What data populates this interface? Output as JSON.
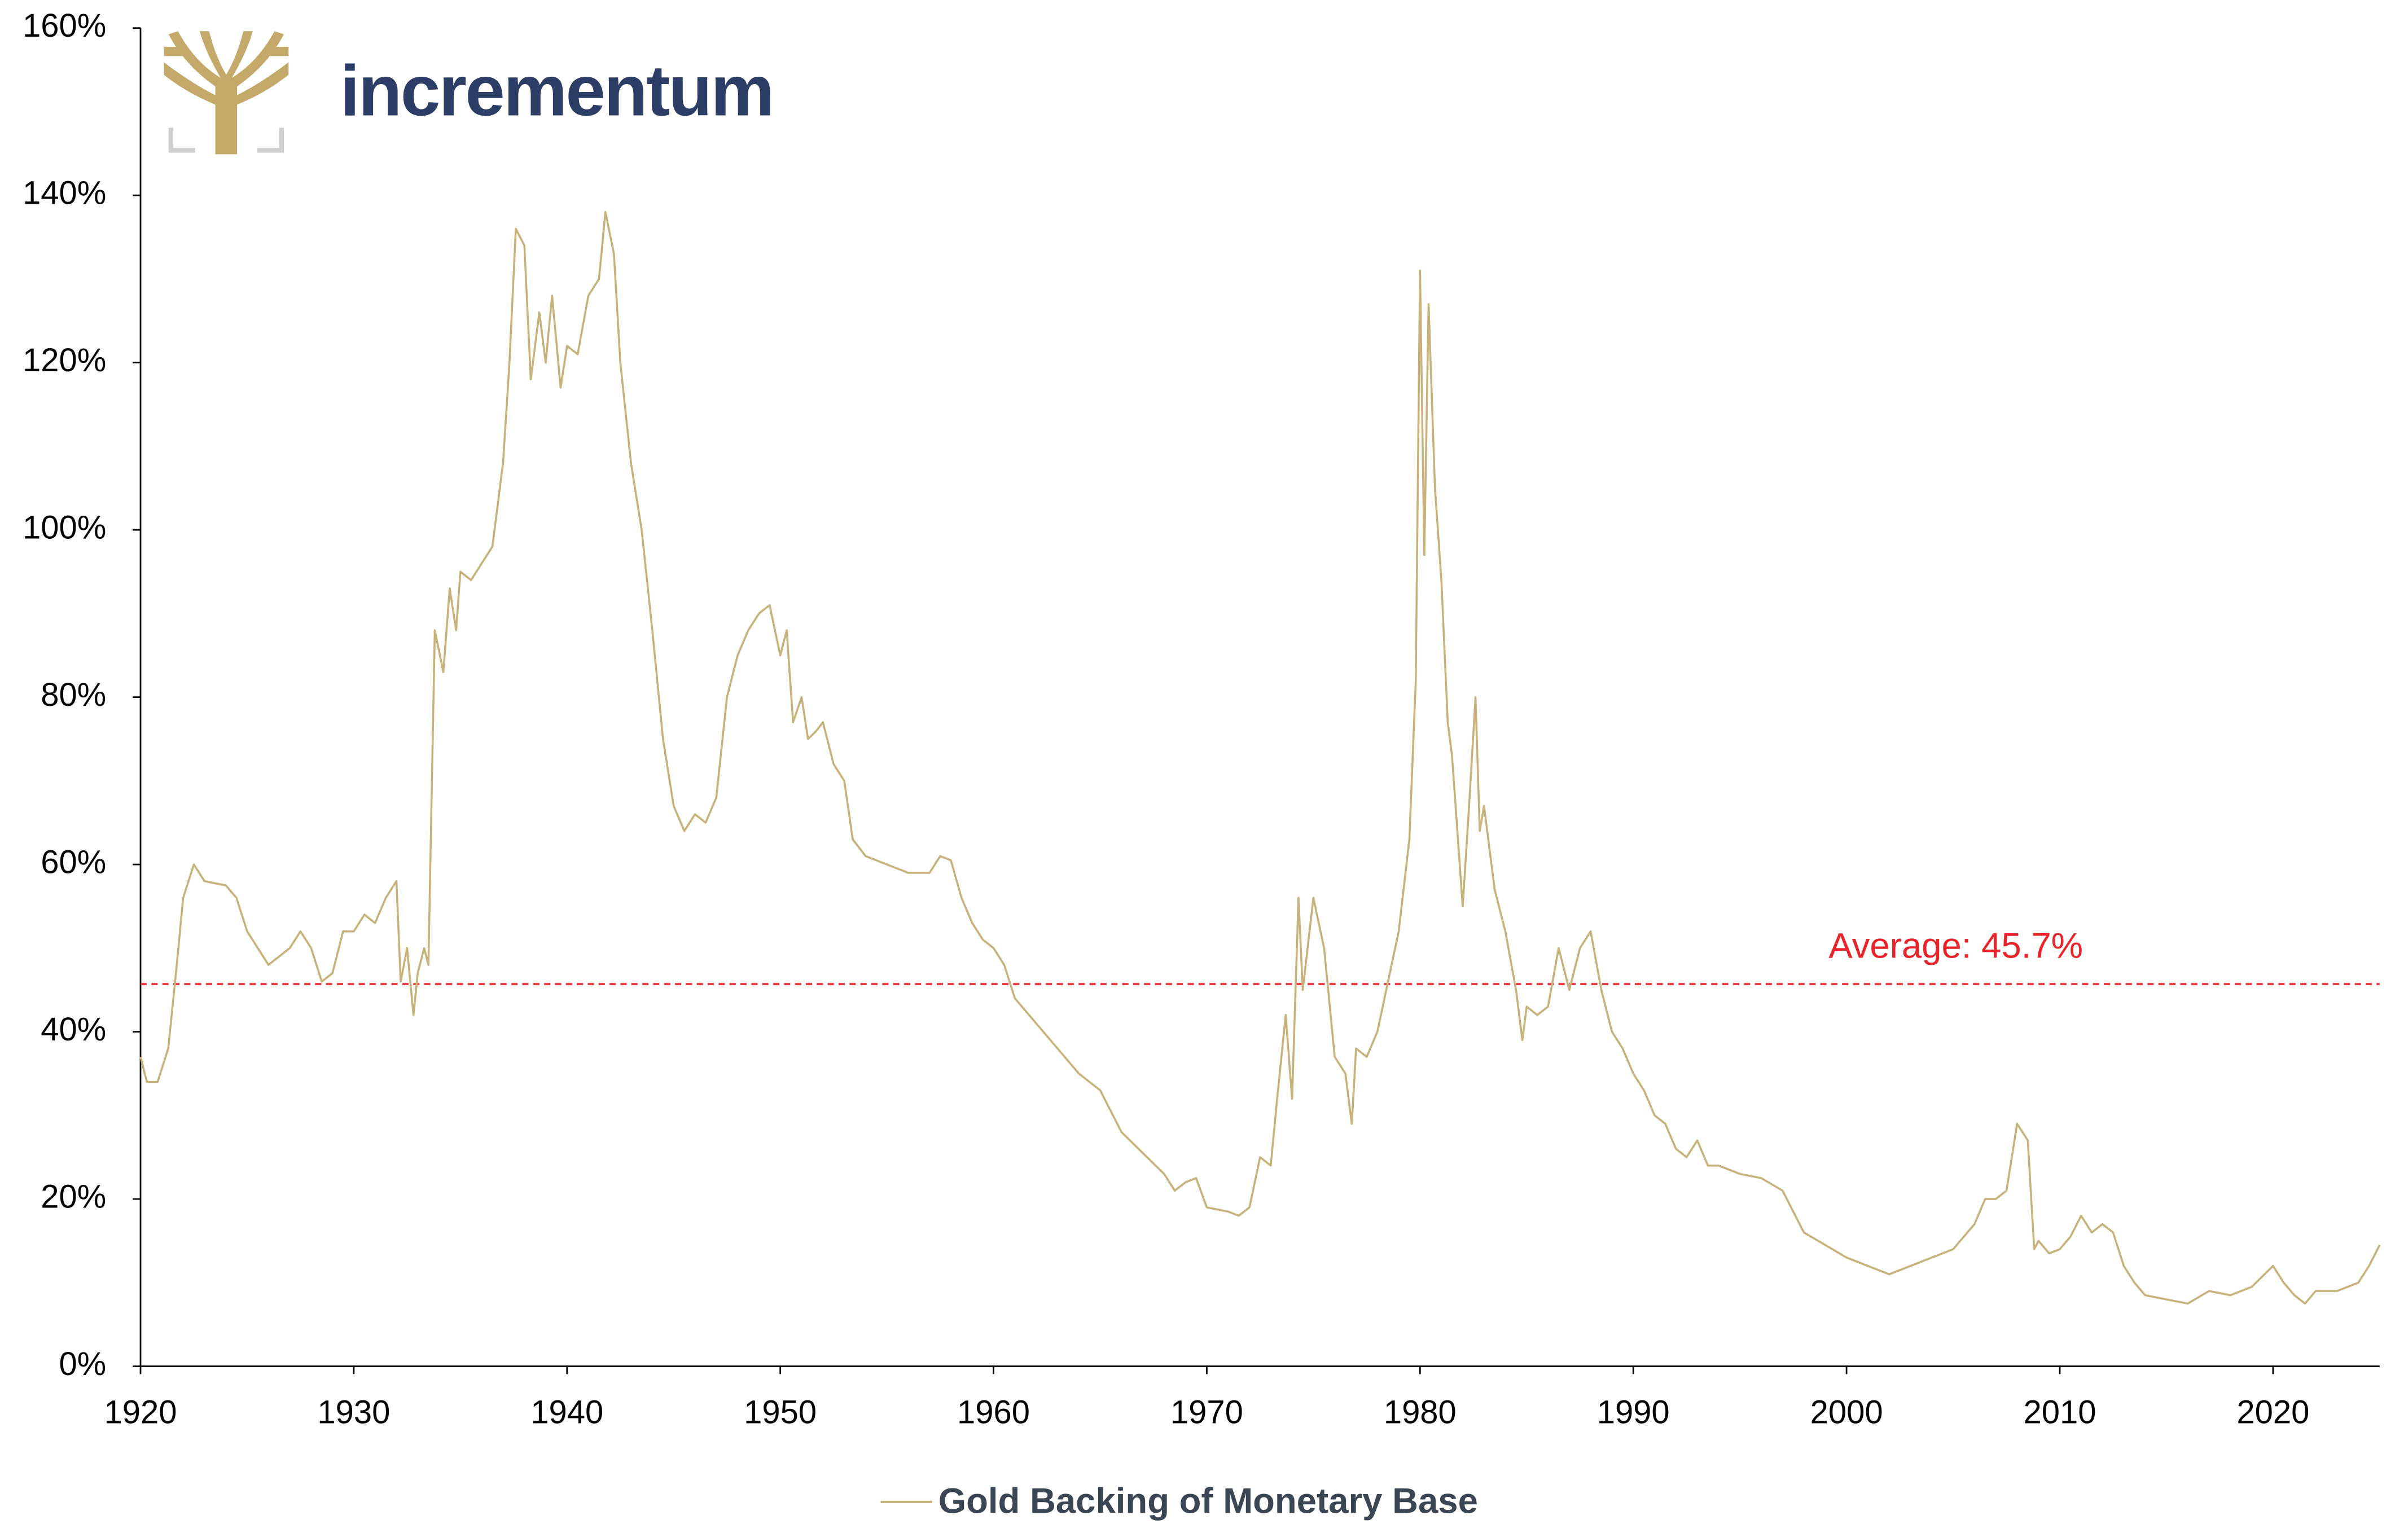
{
  "logo": {
    "text": "incrementum"
  },
  "chart_data": {
    "type": "line",
    "x": [
      1920,
      1920.3,
      1920.8,
      1921.3,
      1921.7,
      1922,
      1922.5,
      1923,
      1924,
      1924.5,
      1925,
      1926,
      1926.5,
      1927,
      1927.5,
      1928,
      1928.5,
      1929,
      1929.5,
      1930,
      1930.5,
      1931,
      1931.5,
      1932,
      1932.2,
      1932.5,
      1932.8,
      1933,
      1933.3,
      1933.5,
      1933.8,
      1934.2,
      1934.5,
      1934.8,
      1935,
      1935.5,
      1936,
      1936.5,
      1937,
      1937.3,
      1937.6,
      1938,
      1938.3,
      1938.7,
      1939,
      1939.3,
      1939.7,
      1940,
      1940.5,
      1941,
      1941.5,
      1941.8,
      1942.2,
      1942.5,
      1943,
      1943.5,
      1944,
      1944.5,
      1945,
      1945.5,
      1946,
      1946.5,
      1947,
      1947.5,
      1948,
      1948.5,
      1949,
      1949.5,
      1950,
      1950.3,
      1950.6,
      1951,
      1951.3,
      1951.7,
      1952,
      1952.5,
      1953,
      1953.4,
      1954,
      1955,
      1956,
      1957,
      1957.5,
      1958,
      1958.5,
      1959,
      1959.5,
      1960,
      1960.5,
      1961,
      1962,
      1963,
      1964,
      1965,
      1966,
      1967,
      1968,
      1968.5,
      1969,
      1969.5,
      1970,
      1971,
      1971.5,
      1972,
      1972.5,
      1973,
      1973.3,
      1973.7,
      1974,
      1974.3,
      1974.5,
      1975,
      1975.5,
      1976,
      1976.5,
      1976.8,
      1977,
      1977.5,
      1978,
      1978.5,
      1979,
      1979.5,
      1979.8,
      1980,
      1980.2,
      1980.4,
      1980.7,
      1981,
      1981.3,
      1981.5,
      1982,
      1982.3,
      1982.6,
      1982.8,
      1983,
      1983.5,
      1984,
      1984.5,
      1984.8,
      1985,
      1985.5,
      1986,
      1986.5,
      1987,
      1987.5,
      1988,
      1988.5,
      1989,
      1989.5,
      1990,
      1990.5,
      1991,
      1991.5,
      1992,
      1992.5,
      1993,
      1993.5,
      1994,
      1995,
      1996,
      1997,
      1998,
      1999,
      2000,
      2001,
      2002,
      2003,
      2004,
      2005,
      2006,
      2006.5,
      2007,
      2007.5,
      2008,
      2008.5,
      2008.8,
      2009,
      2009.5,
      2010,
      2010.5,
      2011,
      2011.5,
      2012,
      2012.5,
      2013,
      2013.5,
      2014,
      2015,
      2016,
      2017,
      2018,
      2019,
      2020,
      2020.5,
      2021,
      2021.5,
      2022,
      2023,
      2024,
      2024.5,
      2025
    ],
    "series": [
      {
        "name": "Gold Backing of Monetary Base",
        "color": "#c8b27c",
        "values": [
          37,
          34,
          34,
          38,
          48,
          56,
          60,
          58,
          57.5,
          56,
          52,
          48,
          49,
          50,
          52,
          50,
          46,
          47,
          52,
          52,
          54,
          53,
          56,
          58,
          46,
          50,
          42,
          47,
          50,
          48,
          88,
          83,
          93,
          88,
          95,
          94,
          96,
          98,
          108,
          120,
          136,
          134,
          118,
          126,
          120,
          128,
          117,
          122,
          121,
          128,
          130,
          138,
          133,
          120,
          108,
          100,
          88,
          75,
          67,
          64,
          66,
          65,
          68,
          80,
          85,
          88,
          90,
          91,
          85,
          88,
          77,
          80,
          75,
          76,
          77,
          72,
          70,
          63,
          61,
          60,
          59,
          59,
          61,
          60.5,
          56,
          53,
          51,
          50,
          48,
          44,
          41,
          38,
          35,
          33,
          28,
          25.5,
          23,
          21,
          22,
          22.5,
          19,
          18.5,
          18,
          19,
          25,
          24,
          32,
          42,
          32,
          56,
          45,
          56,
          50,
          37,
          35,
          29,
          38,
          37,
          40,
          46,
          52,
          63,
          82,
          131,
          97,
          127,
          105,
          94,
          77,
          73,
          55,
          67,
          80,
          64,
          67,
          57,
          52,
          45,
          39,
          43,
          42,
          43,
          50,
          45,
          50,
          52,
          45,
          40,
          38,
          35,
          33,
          30,
          29,
          26,
          25,
          27,
          24,
          24,
          23,
          22.5,
          21,
          16,
          14.5,
          13,
          12,
          11,
          12,
          13,
          14,
          17,
          20,
          20,
          21,
          29,
          27,
          14,
          15,
          13.5,
          14,
          15.5,
          18,
          16,
          17,
          16,
          12,
          10,
          8.5,
          8,
          7.5,
          9,
          8.5,
          9.5,
          12,
          10,
          8.5,
          7.5,
          9,
          9,
          10,
          12,
          14.5
        ]
      }
    ],
    "xlim": [
      1920,
      2025
    ],
    "xticks": [
      1920,
      1930,
      1940,
      1950,
      1960,
      1970,
      1980,
      1990,
      2000,
      2010,
      2020
    ],
    "ylim": [
      0,
      160
    ],
    "yticks": [
      {
        "value": 0,
        "label": "0%"
      },
      {
        "value": 20,
        "label": "20%"
      },
      {
        "value": 40,
        "label": "40%"
      },
      {
        "value": 60,
        "label": "60%"
      },
      {
        "value": 80,
        "label": "80%"
      },
      {
        "value": 100,
        "label": "100%"
      },
      {
        "value": 120,
        "label": "120%"
      },
      {
        "value": 140,
        "label": "140%"
      },
      {
        "value": 160,
        "label": "160%"
      }
    ],
    "average": {
      "value": 45.7,
      "label": "Average: 45.7%",
      "color": "#e8242a"
    },
    "legend": "bottom"
  }
}
